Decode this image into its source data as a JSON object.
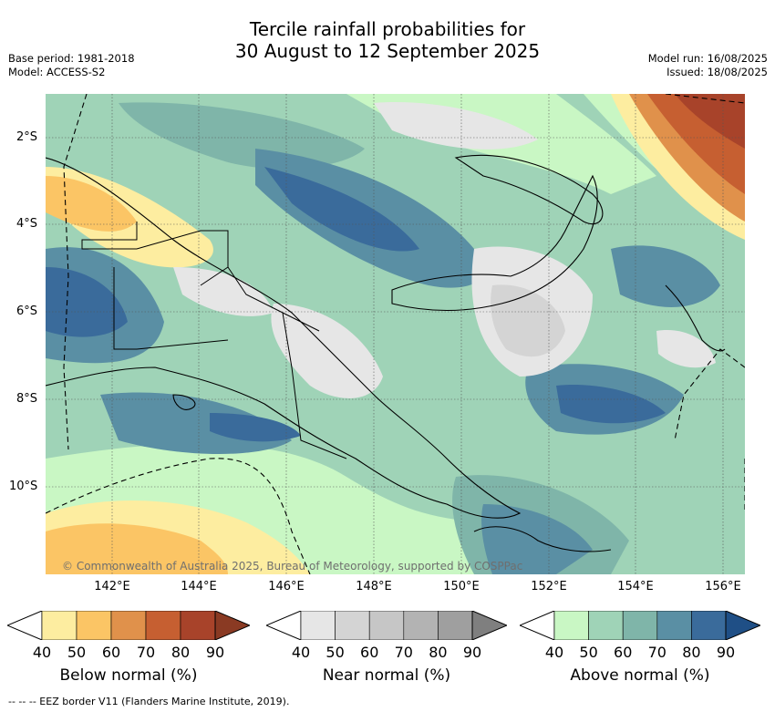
{
  "title": {
    "line1": "Tercile rainfall probabilities for",
    "line2": "30 August to 12 September 2025"
  },
  "meta_left": {
    "base_period": "Base period: 1981-2018",
    "model": "Model: ACCESS-S2"
  },
  "meta_right": {
    "model_run": "Model run: 16/08/2025",
    "issued": "Issued: 18/08/2025"
  },
  "map": {
    "lat_labels": [
      "2°S",
      "4°S",
      "6°S",
      "8°S",
      "10°S"
    ],
    "lon_labels": [
      "142°E",
      "144°E",
      "146°E",
      "148°E",
      "150°E",
      "152°E",
      "154°E",
      "156°E"
    ],
    "copyright": "© Commonwealth of Australia 2025, Bureau of Meteorology, supported by COSPPac"
  },
  "colorbars": [
    {
      "label": "Below normal (%)",
      "ticks": [
        "40",
        "50",
        "60",
        "70",
        "80",
        "90"
      ],
      "colors": [
        "#ffffff",
        "#fdeda0",
        "#fbc565",
        "#e0914b",
        "#c65f31",
        "#a8432a",
        "#8a3a23"
      ]
    },
    {
      "label": "Near normal (%)",
      "ticks": [
        "40",
        "50",
        "60",
        "70",
        "80",
        "90"
      ],
      "colors": [
        "#ffffff",
        "#e6e6e6",
        "#d4d4d4",
        "#c6c6c6",
        "#b3b3b3",
        "#9f9f9f",
        "#7f7f7f"
      ]
    },
    {
      "label": "Above normal (%)",
      "ticks": [
        "40",
        "50",
        "60",
        "70",
        "80",
        "90"
      ],
      "colors": [
        "#ffffff",
        "#c9f7c4",
        "#9fd3b7",
        "#7fb5a9",
        "#5a8fa4",
        "#3a6b9b",
        "#1f4f86"
      ]
    }
  ],
  "footer": "--  --  -- EEZ border V11 (Flanders Marine Institute, 2019)."
}
